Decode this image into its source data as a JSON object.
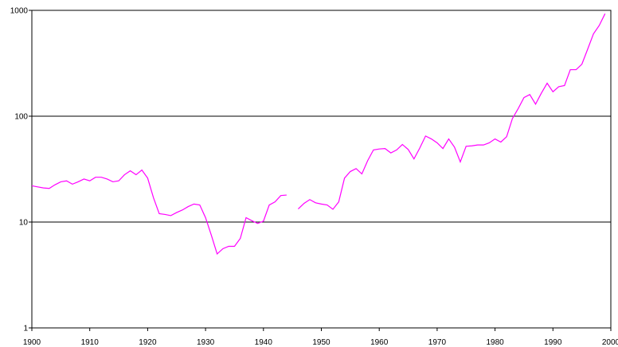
{
  "chart_data": {
    "type": "line",
    "x": [
      1900,
      1901,
      1902,
      1903,
      1904,
      1905,
      1906,
      1907,
      1908,
      1909,
      1910,
      1911,
      1912,
      1913,
      1914,
      1915,
      1916,
      1917,
      1918,
      1919,
      1920,
      1921,
      1922,
      1923,
      1924,
      1925,
      1926,
      1927,
      1928,
      1929,
      1930,
      1931,
      1932,
      1933,
      1934,
      1935,
      1936,
      1937,
      1938,
      1939,
      1940,
      1941,
      1942,
      1943,
      1944,
      1945,
      1946,
      1947,
      1948,
      1949,
      1950,
      1951,
      1952,
      1953,
      1954,
      1955,
      1956,
      1957,
      1958,
      1959,
      1960,
      1961,
      1962,
      1963,
      1964,
      1965,
      1966,
      1967,
      1968,
      1969,
      1970,
      1971,
      1972,
      1973,
      1974,
      1975,
      1976,
      1977,
      1978,
      1979,
      1980,
      1981,
      1982,
      1983,
      1984,
      1985,
      1986,
      1987,
      1988,
      1989,
      1990,
      1991,
      1992,
      1993,
      1994,
      1995,
      1996,
      1997,
      1998,
      1999
    ],
    "series": [
      {
        "color": "#ff00ff",
        "values": [
          22,
          21.5,
          21,
          20.8,
          22.5,
          24,
          24.5,
          22.8,
          24,
          25.5,
          24.5,
          26.5,
          26.5,
          25.5,
          24,
          24.5,
          28,
          30.5,
          28,
          31,
          26,
          17,
          12,
          11.8,
          11.5,
          12.3,
          13,
          14,
          14.8,
          14.5,
          11,
          7.5,
          5,
          5.6,
          5.9,
          5.9,
          7,
          11,
          10.3,
          9.7,
          10.2,
          14.5,
          15.5,
          17.8,
          18,
          null,
          13.3,
          15,
          16.3,
          15.2,
          14.8,
          14.5,
          13.2,
          15.5,
          26,
          30,
          32,
          28.5,
          38,
          48,
          49,
          49.5,
          45,
          48,
          54,
          48.5,
          39.5,
          50,
          65,
          61,
          56,
          49.5,
          61,
          51,
          37,
          52,
          52.5,
          53.5,
          53.5,
          56,
          61,
          57,
          64,
          95,
          118,
          150,
          160,
          130,
          165,
          205,
          170,
          190,
          195,
          275,
          275,
          310,
          430,
          600,
          720,
          930
        ]
      }
    ],
    "xlim": [
      1900,
      2000
    ],
    "xticks": [
      1900,
      1910,
      1920,
      1930,
      1940,
      1950,
      1960,
      1970,
      1980,
      1990,
      2000
    ],
    "ylim": [
      1,
      1000
    ],
    "yticks": [
      1,
      10,
      100,
      1000
    ],
    "log_y": true,
    "grid": true
  }
}
